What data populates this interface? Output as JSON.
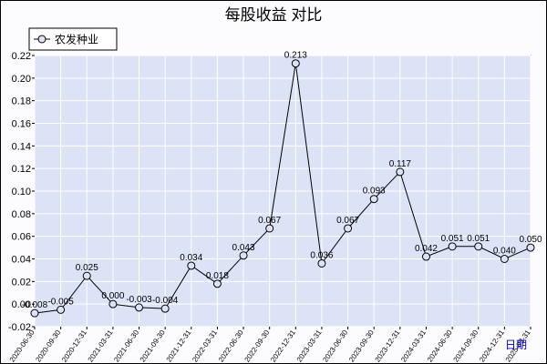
{
  "chart_data": {
    "type": "line",
    "title": "每股收益  对比",
    "series": [
      {
        "name": "农发种业",
        "values": [
          -0.008,
          -0.005,
          0.025,
          0.0,
          -0.003,
          -0.004,
          0.034,
          0.018,
          0.043,
          0.067,
          0.213,
          0.036,
          0.067,
          0.093,
          0.117,
          0.042,
          0.051,
          0.051,
          0.04,
          0.05
        ],
        "labels": [
          "-0.008",
          "-0.005",
          "0.025",
          "0.000",
          "-0.003",
          "-0.004",
          "0.034",
          "0.018",
          "0.043",
          "0.067",
          "0.213",
          "0.036",
          "0.067",
          "0.093",
          "0.117",
          "0.042",
          "0.051",
          "0.051",
          "0.040",
          "0.050"
        ]
      }
    ],
    "categories": [
      "2020-06-30",
      "2020-09-30",
      "2020-12-31",
      "2021-03-31",
      "2021-06-30",
      "2021-09-30",
      "2021-12-31",
      "2022-03-31",
      "2022-06-30",
      "2022-09-30",
      "2022-12-31",
      "2023-03-31",
      "2023-06-30",
      "2023-09-30",
      "2023-12-31",
      "2024-03-31",
      "2024-06-30",
      "2024-09-30",
      "2024-12-31",
      "2025-03-31"
    ],
    "xlabel": "日期",
    "ylim": [
      -0.02,
      0.22
    ],
    "yticks": [
      "-0.02",
      "0.00",
      "0.02",
      "0.04",
      "0.06",
      "0.08",
      "0.10",
      "0.12",
      "0.14",
      "0.16",
      "0.18",
      "0.20",
      "0.22"
    ],
    "grid": true,
    "legend_position": "top-left",
    "colors": {
      "plot_bg": "#dde3f7",
      "grid": "#ffffff",
      "line": "#000000",
      "marker_fill": "#dde3f7",
      "xlabel": "#0000cc"
    }
  }
}
